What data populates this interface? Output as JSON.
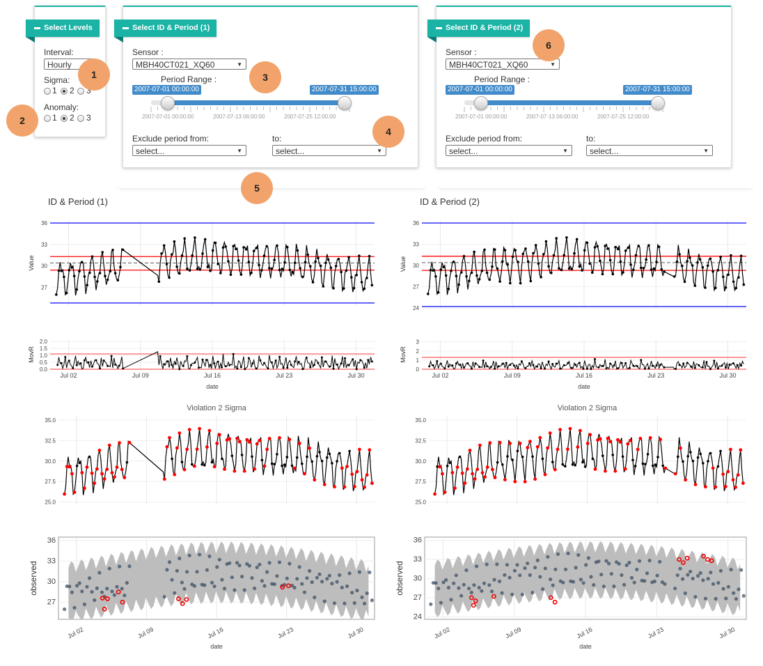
{
  "panels": {
    "levels": {
      "title": "Select Levels",
      "interval_label": "Interval:",
      "interval_value": "Hourly",
      "sigma_label": "Sigma:",
      "sigma_options": [
        "1",
        "2",
        "3"
      ],
      "sigma_selected": "2",
      "anomaly_label": "Anomaly:",
      "anomaly_options": [
        "1",
        "2",
        "3"
      ],
      "anomaly_selected": "2"
    },
    "id1": {
      "title": "Select ID & Period (1)",
      "sensor_label": "Sensor :",
      "sensor_value": "MBH40CT021_XQ60",
      "period_label": "Period Range :",
      "range_from": "2007-07-01 00:00:00",
      "range_to": "2007-07-31 15:00:00",
      "range_selected_fraction": [
        0.0,
        1.0
      ],
      "ticks": [
        "2007-07-01 00:00:00",
        "2007-07-13 06:00:00",
        "2007-07-25 12:00:00"
      ],
      "exclude_label": "Exclude period from:",
      "exclude_from_value": "select...",
      "to_label": "to:",
      "exclude_to_value": "select..."
    },
    "id2": {
      "title": "Select ID & Period (2)",
      "sensor_label": "Sensor :",
      "sensor_value": "MBH40CT021_XQ60",
      "period_label": "Period Range :",
      "range_from": "2007-07-01 00:00:00",
      "range_to": "2007-07-31 15:00:00",
      "range_selected_fraction": [
        0.0,
        1.0
      ],
      "ticks": [
        "2007-07-01 00:00:00",
        "2007-07-13 06:00:00",
        "2007-07-25 12:00:00"
      ],
      "exclude_label": "Exclude period from:",
      "exclude_from_value": "select...",
      "to_label": "to:",
      "exclude_to_value": "select..."
    }
  },
  "callouts": [
    "1",
    "2",
    "3",
    "4",
    "5",
    "6"
  ],
  "colors": {
    "teal": "#1ab3a6",
    "slider": "#428bca",
    "callout": "#f2a36b",
    "control_limit": "#ff0000",
    "spec_limit": "#3333ff",
    "violation": "#ff0000"
  },
  "sections": {
    "left_title": "ID & Period (1)",
    "right_title": "ID & Period (2)"
  },
  "chart_data": [
    {
      "id": "value-1",
      "type": "line",
      "title": "",
      "ylabel": "Value",
      "ylim": [
        24.4,
        36.4
      ],
      "yticks": [
        "27",
        "30",
        "33",
        "36"
      ],
      "spec_limits": [
        36,
        24.8
      ],
      "control_limits": [
        31.3,
        29.4
      ],
      "center": 30.4,
      "x_range_days": [
        1,
        31.6
      ],
      "gap": [
        7.3,
        10.6
      ],
      "series": [
        {
          "values": [
            30.0,
            29.1,
            29.6,
            30.0,
            29.1,
            28.0,
            29.0,
            29.5,
            28.7,
            30.4,
            32.2,
            31.5,
            30.8,
            29.5,
            30.3,
            29.8,
            30.5,
            31.4,
            30.1,
            29.7,
            27.9,
            27.0,
            28.3,
            27.4,
            26.2,
            25.4,
            27.3,
            28.0,
            27.8,
            28.3,
            28.0,
            27.5,
            28.6,
            31.4,
            29.8,
            30.2,
            30.6,
            31.5,
            29.2,
            28.0,
            29.5,
            28.6,
            27.3
          ]
        }
      ]
    },
    {
      "id": "movr-1",
      "type": "line",
      "title": "",
      "ylabel": "MovR",
      "xlabel": "date",
      "ylim": [
        0,
        2.1
      ],
      "yticks": [
        "0.0",
        "0.5",
        "1.0",
        "1.5",
        "2.0"
      ],
      "control_limits": [
        1.1,
        0.0
      ],
      "xticks": [
        "Jul 02",
        "Jul 09",
        "Jul 16",
        "Jul 23",
        "Jul 30"
      ]
    },
    {
      "id": "violation-1",
      "type": "line",
      "title": "Violation 2 Sigma",
      "ylim": [
        24.8,
        35.5
      ],
      "yticks": [
        "25.0",
        "27.5",
        "30.0",
        "32.5",
        "35.0"
      ]
    },
    {
      "id": "observed-1",
      "type": "scatter",
      "title": "",
      "ylabel": "observed",
      "xlabel": "date",
      "ylim": [
        24.5,
        36.5
      ],
      "yticks": [
        "27",
        "30",
        "33",
        "36"
      ],
      "xticks": [
        "Jul 02",
        "Jul 09",
        "Jul 16",
        "Jul 23",
        "Jul 30"
      ]
    },
    {
      "id": "value-2",
      "type": "line",
      "title": "",
      "ylabel": "Value",
      "ylim": [
        24.0,
        36.4
      ],
      "yticks": [
        "24",
        "27",
        "30",
        "33",
        "36"
      ],
      "spec_limits": [
        36,
        24.2
      ],
      "control_limits": [
        31.3,
        29.3
      ],
      "center": 30.4
    },
    {
      "id": "movr-2",
      "type": "line",
      "title": "",
      "ylabel": "MovR",
      "xlabel": "date",
      "ylim": [
        0,
        3.2
      ],
      "yticks": [
        "0",
        "1",
        "2",
        "3"
      ],
      "control_limits": [
        1.3,
        0.0
      ],
      "xticks": [
        "Jul 02",
        "Jul 09",
        "Jul 16",
        "Jul 23",
        "Jul 30"
      ]
    },
    {
      "id": "violation-2",
      "type": "line",
      "title": "Violation 2 Sigma",
      "ylim": [
        24.8,
        35.5
      ],
      "yticks": [
        "25.0",
        "27.5",
        "30.0",
        "32.5",
        "35.0"
      ]
    },
    {
      "id": "observed-2",
      "type": "scatter",
      "title": "",
      "ylabel": "observed",
      "xlabel": "date",
      "ylim": [
        23.6,
        36.5
      ],
      "yticks": [
        "24",
        "27",
        "30",
        "33",
        "36"
      ],
      "xticks": [
        "Jul 02",
        "Jul 09",
        "Jul 16",
        "Jul 23",
        "Jul 30"
      ]
    }
  ]
}
